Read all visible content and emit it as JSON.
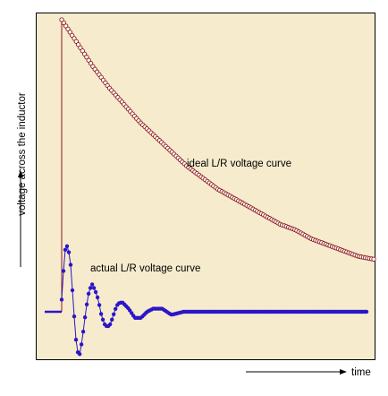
{
  "colors": {
    "background": "#f6ebcd",
    "ideal": "#8b1a1a",
    "actual": "#2a16c8",
    "axis": "#000000"
  },
  "chart_data": {
    "type": "line",
    "title": "",
    "xlabel": "time",
    "ylabel": "voltage across the inductor",
    "grid": false,
    "axis_ticks": false,
    "series": [
      {
        "name": "ideal L/R voltage curve",
        "style": "hollow-circle-markers",
        "x": [
          0,
          0.05,
          0.1,
          0.15,
          0.2,
          0.25,
          0.3,
          0.35,
          0.4,
          0.45,
          0.5,
          0.55,
          0.6,
          0.65,
          0.7,
          0.75,
          0.8,
          0.85,
          0.9,
          0.95,
          1.0
        ],
        "y": [
          1.0,
          0.92,
          0.84,
          0.77,
          0.71,
          0.65,
          0.6,
          0.55,
          0.5,
          0.46,
          0.42,
          0.39,
          0.36,
          0.33,
          0.3,
          0.28,
          0.25,
          0.23,
          0.21,
          0.19,
          0.18
        ]
      },
      {
        "name": "actual L/R voltage curve",
        "style": "filled-circle-markers",
        "x": [
          0.0,
          0.01,
          0.02,
          0.03,
          0.04,
          0.05,
          0.06,
          0.07,
          0.08,
          0.09,
          0.1,
          0.11,
          0.12,
          0.13,
          0.14,
          0.15,
          0.16,
          0.17,
          0.18,
          0.19,
          0.2,
          0.22,
          0.24,
          0.26,
          0.28,
          0.3,
          0.33,
          0.36,
          0.4,
          0.45,
          0.5,
          0.6,
          0.7,
          0.8,
          0.9,
          1.0
        ],
        "y": [
          0.04,
          0.2,
          0.22,
          0.15,
          0.0,
          -0.13,
          -0.14,
          -0.07,
          0.01,
          0.07,
          0.09,
          0.07,
          0.04,
          -0.01,
          -0.04,
          -0.05,
          -0.04,
          -0.01,
          0.02,
          0.03,
          0.03,
          0.01,
          -0.02,
          -0.02,
          0.0,
          0.01,
          0.01,
          -0.01,
          0.0,
          0.0,
          0.0,
          0.0,
          0.0,
          0.0,
          0.0,
          0.0
        ]
      }
    ]
  }
}
